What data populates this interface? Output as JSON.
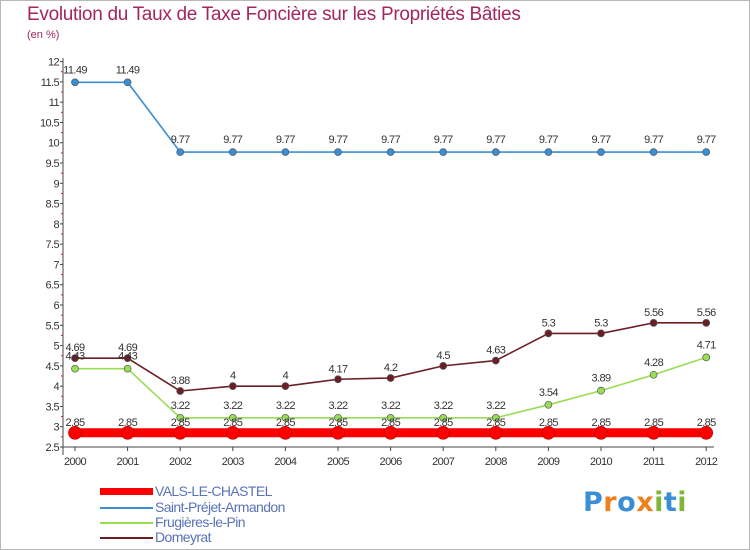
{
  "title": "Evolution du Taux de Taxe Foncière sur les Propriétés Bâties",
  "subtitle": "(en %)",
  "logo": {
    "letters": [
      "P",
      "r",
      "o",
      "x",
      "i",
      "t",
      "i"
    ],
    "colors": [
      "#3a8fd4",
      "#f07f1e",
      "#3a8fd4",
      "#f07f1e",
      "#80b53a",
      "#3a8fd4",
      "#80b53a"
    ]
  },
  "chart_data": {
    "type": "line",
    "title": "Evolution du Taux de Taxe Foncière sur les Propriétés Bâties",
    "ylabel": "(en %)",
    "xlabel": "",
    "ylim": [
      2.5,
      12
    ],
    "ystep": 0.5,
    "x": [
      "2000",
      "2001",
      "2002",
      "2003",
      "2004",
      "2005",
      "2006",
      "2007",
      "2008",
      "2009",
      "2010",
      "2011",
      "2012"
    ],
    "series": [
      {
        "name": "VALS-LE-CHASTEL",
        "color": "#ff0000",
        "values": [
          2.85,
          2.85,
          2.85,
          2.85,
          2.85,
          2.85,
          2.85,
          2.85,
          2.85,
          2.85,
          2.85,
          2.85,
          2.85
        ],
        "labels": [
          "2.85",
          "2.85",
          "2.85",
          "2.85",
          "2.85",
          "2.85",
          "2.85",
          "2.85",
          "2.85",
          "2.85",
          "2.85",
          "2.85",
          "2.85"
        ]
      },
      {
        "name": "Saint-Préjet-Armandon",
        "color": "#3a8fd4",
        "values": [
          11.49,
          11.49,
          9.77,
          9.77,
          9.77,
          9.77,
          9.77,
          9.77,
          9.77,
          9.77,
          9.77,
          9.77,
          9.77
        ],
        "labels": [
          "11.49",
          "11.49",
          "9.77",
          "9.77",
          "9.77",
          "9.77",
          "9.77",
          "9.77",
          "9.77",
          "9.77",
          "9.77",
          "9.77",
          "9.77"
        ]
      },
      {
        "name": "Frugières-le-Pin",
        "color": "#99dd55",
        "values": [
          4.43,
          4.43,
          3.22,
          3.22,
          3.22,
          3.22,
          3.22,
          3.22,
          3.22,
          3.54,
          3.89,
          4.28,
          4.71
        ],
        "labels": [
          "4.43",
          "4.43",
          "3.22",
          "3.22",
          "3.22",
          "3.22",
          "3.22",
          "3.22",
          "3.22",
          "3.54",
          "3.89",
          "4.28",
          "4.71"
        ]
      },
      {
        "name": "Domeyrat",
        "color": "#6b1f24",
        "values": [
          4.69,
          4.69,
          3.88,
          4,
          4,
          4.17,
          4.2,
          4.5,
          4.63,
          5.3,
          5.3,
          5.56,
          5.56
        ],
        "labels": [
          "4.69",
          "4.69",
          "3.88",
          "4",
          "4",
          "4.17",
          "4.2",
          "4.5",
          "4.63",
          "5.3",
          "5.3",
          "5.56",
          "5.56"
        ]
      }
    ],
    "legend_position": "bottom-left",
    "grid": false
  }
}
